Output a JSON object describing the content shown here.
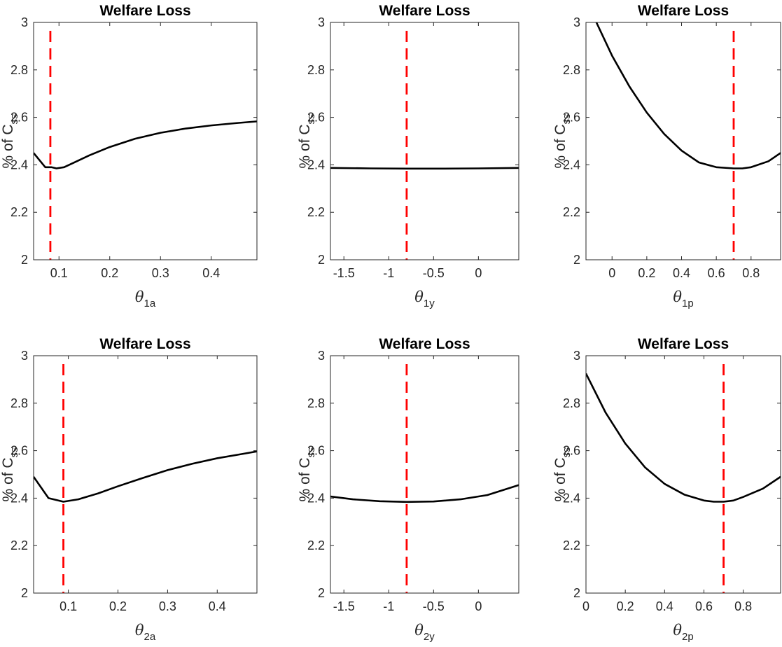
{
  "chart_data": [
    {
      "type": "line",
      "title": "Welfare Loss",
      "ylabel": "% of C",
      "ylabel_sub": "ss",
      "xlabel": "θ",
      "xlabel_sub": "1a",
      "xlim": [
        0.05,
        0.49
      ],
      "ylim": [
        2,
        3
      ],
      "xticks": [
        0.1,
        0.2,
        0.3,
        0.4
      ],
      "xtick_labels": [
        "0.1",
        "0.2",
        "0.3",
        "0.4"
      ],
      "yticks": [
        2,
        2.2,
        2.4,
        2.6,
        2.8,
        3
      ],
      "ytick_labels": [
        "2",
        "2.2",
        "2.4",
        "2.6",
        "2.8",
        "3"
      ],
      "vline": 0.083,
      "series": [
        {
          "x": [
            0.05,
            0.073,
            0.085,
            0.095,
            0.11,
            0.13,
            0.16,
            0.2,
            0.25,
            0.3,
            0.35,
            0.4,
            0.45,
            0.49
          ],
          "y": [
            2.45,
            2.39,
            2.39,
            2.385,
            2.39,
            2.41,
            2.44,
            2.475,
            2.51,
            2.535,
            2.553,
            2.566,
            2.576,
            2.583
          ]
        }
      ]
    },
    {
      "type": "line",
      "title": "Welfare Loss",
      "ylabel": "% of C",
      "ylabel_sub": "ss",
      "xlabel": "θ",
      "xlabel_sub": "1y",
      "xlim": [
        -1.65,
        0.45
      ],
      "ylim": [
        2,
        3
      ],
      "xticks": [
        -1.5,
        -1,
        -0.5,
        0
      ],
      "xtick_labels": [
        "-1.5",
        "-1",
        "-0.5",
        "0"
      ],
      "yticks": [
        2,
        2.2,
        2.4,
        2.6,
        2.8,
        3
      ],
      "ytick_labels": [
        "2",
        "2.2",
        "2.4",
        "2.6",
        "2.8",
        "3"
      ],
      "vline": -0.8,
      "series": [
        {
          "x": [
            -1.65,
            -1.2,
            -0.8,
            -0.4,
            0,
            0.45
          ],
          "y": [
            2.387,
            2.385,
            2.384,
            2.384,
            2.385,
            2.387
          ]
        }
      ]
    },
    {
      "type": "line",
      "title": "Welfare Loss",
      "ylabel": "% of C",
      "ylabel_sub": "ss",
      "xlabel": "θ",
      "xlabel_sub": "1p",
      "xlim": [
        -0.15,
        0.97
      ],
      "ylim": [
        2,
        3
      ],
      "xticks": [
        0,
        0.2,
        0.4,
        0.6,
        0.8
      ],
      "xtick_labels": [
        "0",
        "0.2",
        "0.4",
        "0.6",
        "0.8"
      ],
      "yticks": [
        2,
        2.2,
        2.4,
        2.6,
        2.8,
        3
      ],
      "ytick_labels": [
        "2",
        "2.2",
        "2.4",
        "2.6",
        "2.8",
        "3"
      ],
      "vline": 0.7,
      "series": [
        {
          "x": [
            -0.09,
            0,
            0.1,
            0.2,
            0.3,
            0.4,
            0.5,
            0.6,
            0.7,
            0.75,
            0.8,
            0.9,
            0.97
          ],
          "y": [
            3.0,
            2.86,
            2.73,
            2.62,
            2.53,
            2.46,
            2.41,
            2.39,
            2.385,
            2.385,
            2.39,
            2.415,
            2.45
          ]
        }
      ]
    },
    {
      "type": "line",
      "title": "Welfare Loss",
      "ylabel": "% of C",
      "ylabel_sub": "ss",
      "xlabel": "θ",
      "xlabel_sub": "2a",
      "xlim": [
        0.03,
        0.48
      ],
      "ylim": [
        2,
        3
      ],
      "xticks": [
        0.1,
        0.2,
        0.3,
        0.4
      ],
      "xtick_labels": [
        "0.1",
        "0.2",
        "0.3",
        "0.4"
      ],
      "yticks": [
        2,
        2.2,
        2.4,
        2.6,
        2.8,
        3
      ],
      "ytick_labels": [
        "2",
        "2.2",
        "2.4",
        "2.6",
        "2.8",
        "3"
      ],
      "vline": 0.09,
      "series": [
        {
          "x": [
            0.03,
            0.06,
            0.09,
            0.12,
            0.16,
            0.2,
            0.25,
            0.3,
            0.35,
            0.4,
            0.45,
            0.48
          ],
          "y": [
            2.49,
            2.4,
            2.385,
            2.395,
            2.42,
            2.45,
            2.485,
            2.518,
            2.545,
            2.568,
            2.586,
            2.597
          ]
        }
      ]
    },
    {
      "type": "line",
      "title": "Welfare Loss",
      "ylabel": "% of C",
      "ylabel_sub": "ss",
      "xlabel": "θ",
      "xlabel_sub": "2y",
      "xlim": [
        -1.65,
        0.45
      ],
      "ylim": [
        2,
        3
      ],
      "xticks": [
        -1.5,
        -1,
        -0.5,
        0
      ],
      "xtick_labels": [
        "-1.5",
        "-1",
        "-0.5",
        "0"
      ],
      "yticks": [
        2,
        2.2,
        2.4,
        2.6,
        2.8,
        3
      ],
      "ytick_labels": [
        "2",
        "2.2",
        "2.4",
        "2.6",
        "2.8",
        "3"
      ],
      "vline": -0.8,
      "series": [
        {
          "x": [
            -1.65,
            -1.4,
            -1.1,
            -0.8,
            -0.5,
            -0.2,
            0.1,
            0.45
          ],
          "y": [
            2.407,
            2.395,
            2.387,
            2.384,
            2.386,
            2.395,
            2.413,
            2.455
          ]
        }
      ]
    },
    {
      "type": "line",
      "title": "Welfare Loss",
      "ylabel": "% of C",
      "ylabel_sub": "ss",
      "xlabel": "θ",
      "xlabel_sub": "2p",
      "xlim": [
        0,
        0.99
      ],
      "ylim": [
        2,
        3
      ],
      "xticks": [
        0,
        0.2,
        0.4,
        0.6,
        0.8
      ],
      "xtick_labels": [
        "0",
        "0.2",
        "0.4",
        "0.6",
        "0.8"
      ],
      "yticks": [
        2,
        2.2,
        2.4,
        2.6,
        2.8,
        3
      ],
      "ytick_labels": [
        "2",
        "2.2",
        "2.4",
        "2.6",
        "2.8",
        "3"
      ],
      "vline": 0.7,
      "series": [
        {
          "x": [
            0,
            0.1,
            0.2,
            0.3,
            0.4,
            0.5,
            0.6,
            0.65,
            0.7,
            0.75,
            0.8,
            0.9,
            0.99
          ],
          "y": [
            2.925,
            2.76,
            2.63,
            2.53,
            2.46,
            2.415,
            2.39,
            2.385,
            2.385,
            2.39,
            2.405,
            2.44,
            2.49
          ]
        }
      ]
    }
  ],
  "colors": {
    "curve": "#000000",
    "vline": "#ff0000",
    "axis": "#262626"
  }
}
